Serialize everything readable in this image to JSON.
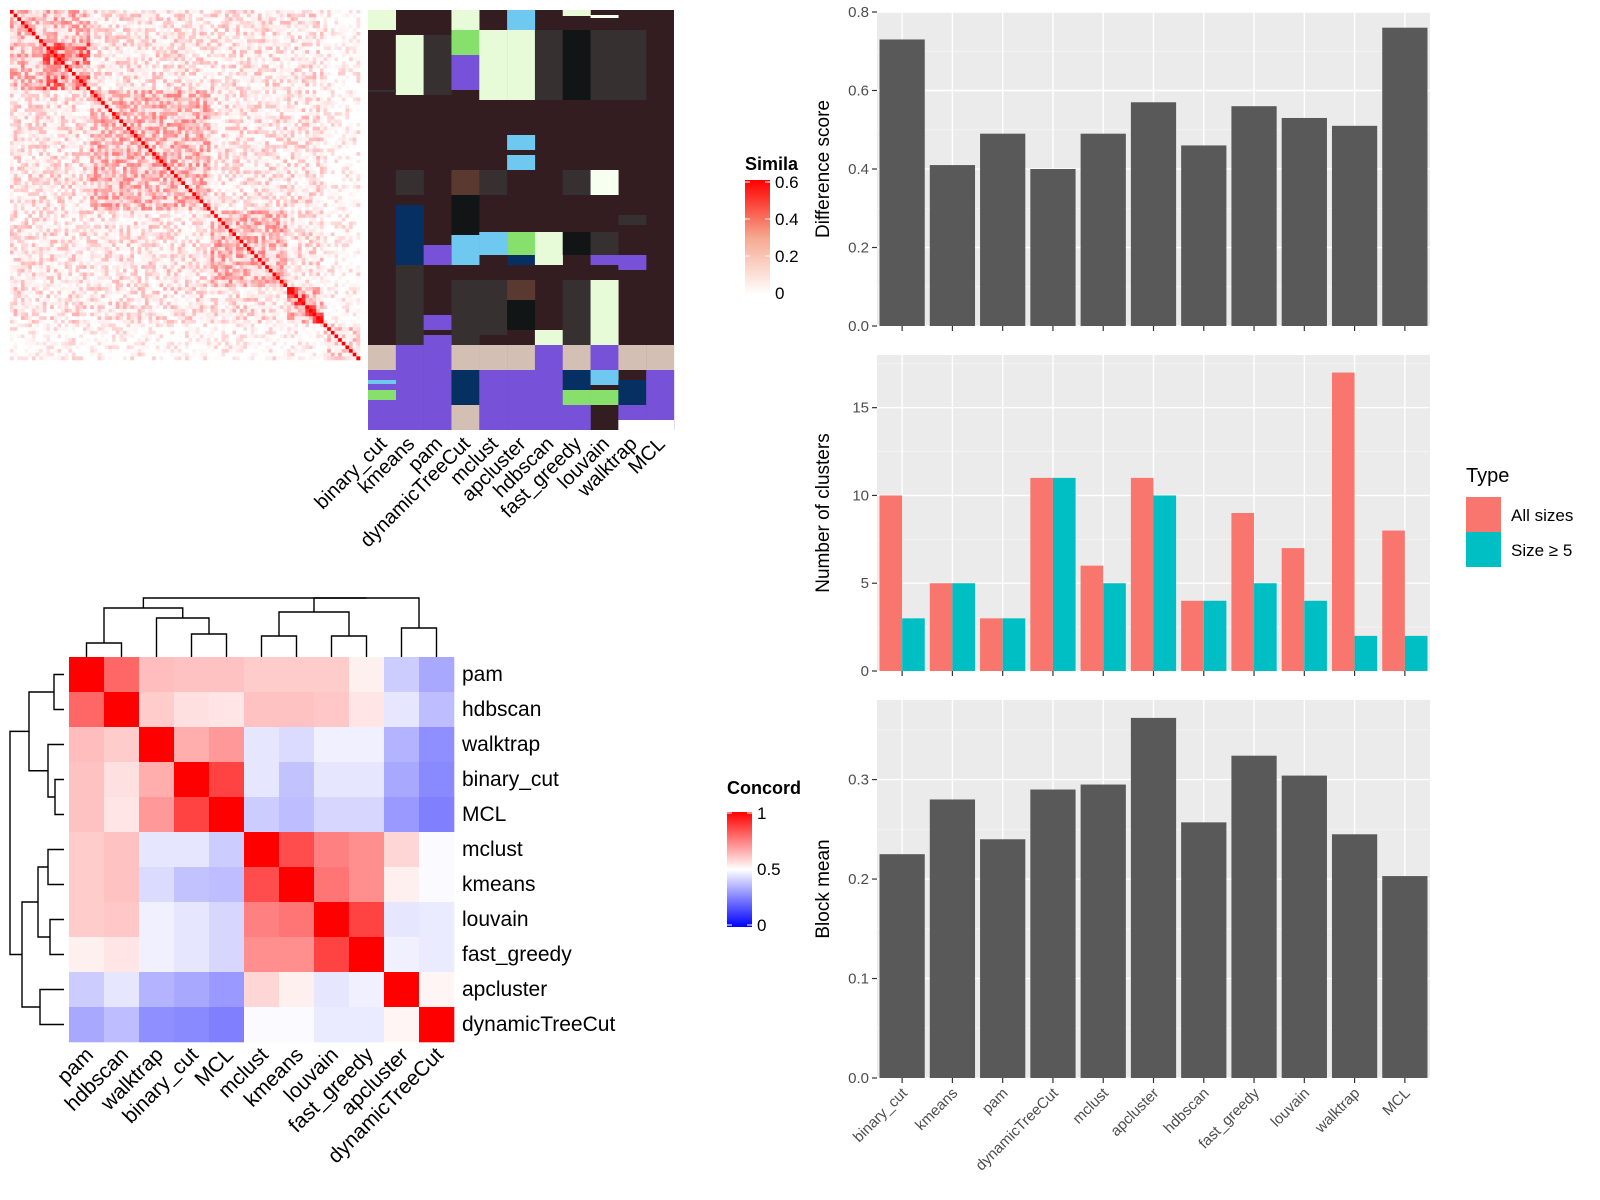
{
  "methods": [
    "binary_cut",
    "kmeans",
    "pam",
    "dynamicTreeCut",
    "mclust",
    "apcluster",
    "hdbscan",
    "fast_greedy",
    "louvain",
    "walktrap",
    "MCL"
  ],
  "similarity_legend": {
    "title": "Simila",
    "ticks": [
      "0.6",
      "0.4",
      "0.2",
      "0"
    ]
  },
  "concordance": {
    "legend_title": "Concord",
    "legend_ticks": [
      "1",
      "0.5",
      "0"
    ],
    "order": [
      "pam",
      "hdbscan",
      "walktrap",
      "binary_cut",
      "MCL",
      "mclust",
      "kmeans",
      "louvain",
      "fast_greedy",
      "apcluster",
      "dynamicTreeCut"
    ],
    "matrix": [
      [
        1.0,
        0.8,
        0.63,
        0.62,
        0.62,
        0.6,
        0.6,
        0.6,
        0.53,
        0.4,
        0.33
      ],
      [
        0.8,
        1.0,
        0.6,
        0.56,
        0.55,
        0.62,
        0.62,
        0.61,
        0.55,
        0.45,
        0.37
      ],
      [
        0.63,
        0.6,
        1.0,
        0.66,
        0.7,
        0.45,
        0.43,
        0.47,
        0.47,
        0.35,
        0.28
      ],
      [
        0.62,
        0.56,
        0.66,
        1.0,
        0.87,
        0.45,
        0.38,
        0.45,
        0.45,
        0.33,
        0.27
      ],
      [
        0.62,
        0.55,
        0.7,
        0.87,
        1.0,
        0.4,
        0.37,
        0.42,
        0.42,
        0.3,
        0.25
      ],
      [
        0.6,
        0.62,
        0.45,
        0.45,
        0.4,
        1.0,
        0.85,
        0.75,
        0.72,
        0.58,
        0.49
      ],
      [
        0.6,
        0.62,
        0.43,
        0.38,
        0.37,
        0.85,
        1.0,
        0.77,
        0.72,
        0.53,
        0.49
      ],
      [
        0.6,
        0.61,
        0.47,
        0.45,
        0.42,
        0.75,
        0.77,
        1.0,
        0.87,
        0.45,
        0.46
      ],
      [
        0.53,
        0.55,
        0.47,
        0.45,
        0.42,
        0.72,
        0.72,
        0.87,
        1.0,
        0.47,
        0.46
      ],
      [
        0.4,
        0.45,
        0.35,
        0.33,
        0.3,
        0.58,
        0.53,
        0.45,
        0.47,
        1.0,
        0.52
      ],
      [
        0.33,
        0.37,
        0.28,
        0.27,
        0.25,
        0.49,
        0.49,
        0.46,
        0.46,
        0.52,
        1.0
      ]
    ]
  },
  "chart_data": [
    {
      "type": "bar",
      "categories": [
        "binary_cut",
        "kmeans",
        "pam",
        "dynamicTreeCut",
        "mclust",
        "apcluster",
        "hdbscan",
        "fast_greedy",
        "louvain",
        "walktrap",
        "MCL"
      ],
      "values": [
        0.73,
        0.41,
        0.49,
        0.4,
        0.49,
        0.57,
        0.46,
        0.56,
        0.53,
        0.51,
        0.76
      ],
      "ylabel": "Difference score",
      "ylim": [
        0,
        0.8
      ],
      "yticks": [
        "0.0",
        "0.2",
        "0.4",
        "0.6",
        "0.8"
      ],
      "color": "#595959",
      "grid": true
    },
    {
      "type": "bar",
      "categories": [
        "binary_cut",
        "kmeans",
        "pam",
        "dynamicTreeCut",
        "mclust",
        "apcluster",
        "hdbscan",
        "fast_greedy",
        "louvain",
        "walktrap",
        "MCL"
      ],
      "series": [
        {
          "name": "All sizes",
          "values": [
            10,
            5,
            3,
            11,
            6,
            11,
            4,
            9,
            7,
            17,
            8
          ],
          "color": "#F8766D"
        },
        {
          "name": "Size ≥ 5",
          "values": [
            3,
            5,
            3,
            11,
            5,
            10,
            4,
            5,
            4,
            2,
            2
          ],
          "color": "#00BFC4"
        }
      ],
      "ylabel": "Number of clusters",
      "ylim": [
        0,
        18
      ],
      "yticks": [
        "0",
        "5",
        "10",
        "15"
      ],
      "legend_title": "Type",
      "legend_position": "right",
      "grid": true
    },
    {
      "type": "bar",
      "categories": [
        "binary_cut",
        "kmeans",
        "pam",
        "dynamicTreeCut",
        "mclust",
        "apcluster",
        "hdbscan",
        "fast_greedy",
        "louvain",
        "walktrap",
        "MCL"
      ],
      "values": [
        0.225,
        0.28,
        0.24,
        0.29,
        0.295,
        0.362,
        0.257,
        0.324,
        0.304,
        0.245,
        0.203
      ],
      "ylabel": "Block mean",
      "ylim": [
        0,
        0.38
      ],
      "yticks": [
        "0.0",
        "0.1",
        "0.2",
        "0.3"
      ],
      "color": "#595959",
      "grid": true
    }
  ]
}
